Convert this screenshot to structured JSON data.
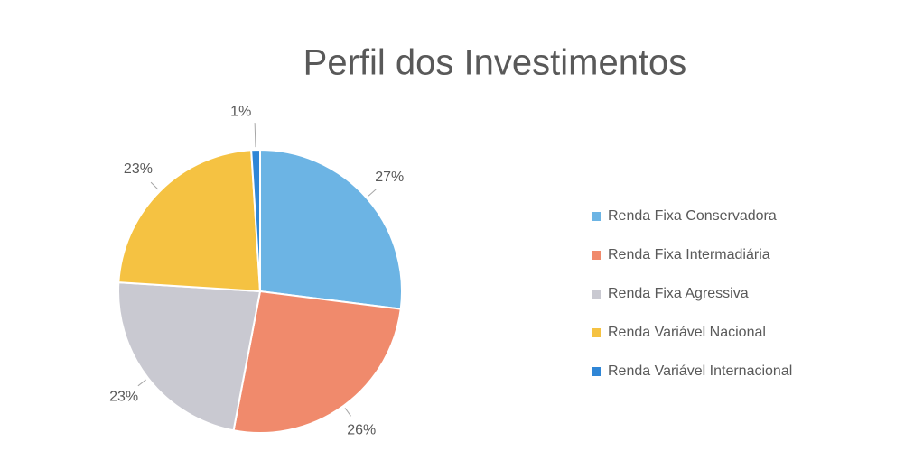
{
  "chart_data": {
    "type": "pie",
    "title": "Perfil dos Investimentos",
    "categories": [
      "Renda Fixa Conservadora",
      "Renda Fixa Intermadiária",
      "Renda Fixa Agressiva",
      "Renda Variável Nacional",
      "Renda Variável Internacional"
    ],
    "values": [
      27,
      26,
      23,
      23,
      1
    ],
    "value_labels": [
      "27%",
      "26%",
      "23%",
      "23%",
      "1%"
    ],
    "colors": [
      "#6cb4e4",
      "#f08a6c",
      "#c9c9d1",
      "#f5c242",
      "#2f86d6"
    ],
    "legend": "right"
  }
}
